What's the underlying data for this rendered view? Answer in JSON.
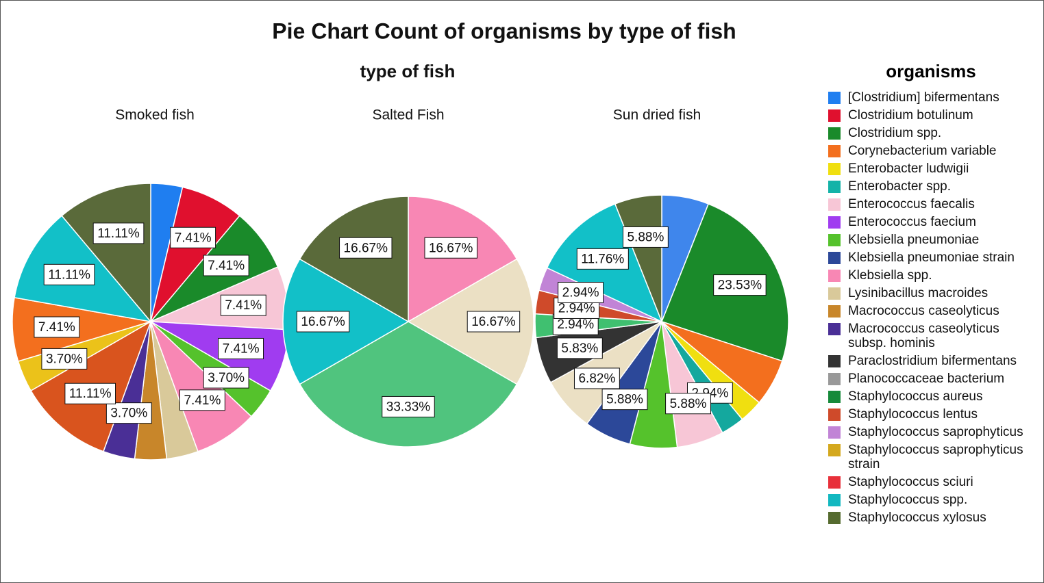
{
  "chart_data": {
    "type": "pie",
    "title": "Pie Chart Count of organisms by type of fish",
    "subtitle": "type of fish",
    "legend_title": "organisms",
    "legend": {
      "names": [
        "[Clostridium] bifermentans",
        "Clostridium botulinum",
        "Clostridium spp.",
        "Corynebacterium variable",
        "Enterobacter ludwigii",
        "Enterobacter spp.",
        "Enterococcus faecalis",
        "Enterococcus faecium",
        "Klebsiella pneumoniae",
        "Klebsiella pneumoniae strain",
        "Klebsiella spp.",
        "Lysinibacillus macroides",
        "Macrococcus caseolyticus",
        "Macrococcus caseolyticus subsp. hominis",
        "Paraclostridium bifermentans",
        "Planococcaceae bacterium",
        "Staphylococcus aureus",
        "Staphylococcus lentus",
        "Staphylococcus saprophyticus",
        "Staphylococcus saprophyticus strain",
        "Staphylococcus sciuri",
        "Staphylococcus spp.",
        "Staphylococcus xylosus"
      ],
      "colors": [
        "#1f7ef0",
        "#e0102e",
        "#1a8a2a",
        "#f36f1e",
        "#f0df10",
        "#14b3a8",
        "#f7c6d6",
        "#a03cf0",
        "#55c22c",
        "#2c4899",
        "#f887b4",
        "#d9c99a",
        "#c8862a",
        "#4a2f96",
        "#333333",
        "#999999",
        "#168a3a",
        "#cf4a2a",
        "#c184d6",
        "#d4a81e",
        "#e8303a",
        "#12b8c0",
        "#556b2f"
      ]
    },
    "pies": [
      {
        "name": "Smoked fish",
        "categories": [
          "[Clostridium] bifermentans",
          "Clostridium botulinum",
          "Clostridium spp.",
          "Enterococcus faecalis",
          "Enterococcus faecium",
          "Klebsiella pneumoniae",
          "Klebsiella spp.",
          "Lysinibacillus macroides",
          "Macrococcus caseolyticus",
          "Macrococcus caseolyticus subsp. hominis",
          "Staphylococcus lentus",
          "Staphylococcus saprophyticus strain",
          "Corynebacterium variable",
          "Staphylococcus spp.",
          "Staphylococcus xylosus"
        ],
        "colors": [
          "#1f7ef0",
          "#e0102e",
          "#1a8a2a",
          "#f7c6d6",
          "#a03cf0",
          "#55c22c",
          "#f887b4",
          "#d9c99a",
          "#c8862a",
          "#4a2f96",
          "#d9541e",
          "#ebc21a",
          "#f36f1e",
          "#12c0c8",
          "#5a6a3a"
        ],
        "values": [
          3.7,
          7.41,
          7.41,
          7.41,
          7.41,
          3.7,
          7.41,
          3.7,
          3.7,
          3.7,
          11.11,
          3.7,
          7.41,
          11.11,
          11.11
        ],
        "value_labels": [
          null,
          "7.41%",
          "7.41%",
          "7.41%",
          "7.41%",
          "3.70%",
          "7.41%",
          null,
          null,
          "3.70%",
          "11.11%",
          "3.70%",
          "7.41%",
          "11.11%",
          "11.11%"
        ]
      },
      {
        "name": "Salted Fish",
        "categories": [
          "Klebsiella spp.",
          "Lysinibacillus macroides",
          "Staphylococcus aureus",
          "Staphylococcus spp.",
          "Staphylococcus xylosus"
        ],
        "colors": [
          "#f887b4",
          "#ebe0c4",
          "#50c47e",
          "#12c0c8",
          "#5a6a3a"
        ],
        "values": [
          16.67,
          16.67,
          33.33,
          16.67,
          16.67
        ],
        "value_labels": [
          "16.67%",
          "16.67%",
          "33.33%",
          "16.67%",
          "16.67%"
        ]
      },
      {
        "name": "Sun dried fish",
        "categories": [
          "[Clostridium] bifermentans",
          "Clostridium spp.",
          "Corynebacterium variable",
          "Enterobacter ludwigii",
          "Enterobacter spp.",
          "Enterococcus faecalis",
          "Klebsiella pneumoniae",
          "Klebsiella pneumoniae strain",
          "Lysinibacillus macroides",
          "Paraclostridium bifermentans",
          "Staphylococcus aureus",
          "Staphylococcus lentus",
          "Staphylococcus saprophyticus",
          "Staphylococcus spp.",
          "Staphylococcus xylosus"
        ],
        "colors": [
          "#3f86ec",
          "#1a8a2a",
          "#f36f1e",
          "#f0df10",
          "#14a89e",
          "#f7c6d6",
          "#55c22c",
          "#2c4899",
          "#ebe0c4",
          "#333333",
          "#40c070",
          "#cf4a2a",
          "#c184d6",
          "#12c0c8",
          "#5a6a3a"
        ],
        "values": [
          5.88,
          23.53,
          5.88,
          2.94,
          2.94,
          5.88,
          5.88,
          5.88,
          6.82,
          5.83,
          2.94,
          2.94,
          2.94,
          11.76,
          5.88
        ],
        "value_labels": [
          null,
          "23.53%",
          null,
          null,
          "2.94%",
          "5.88%",
          null,
          "5.88%",
          "6.82%",
          "5.83%",
          "2.94%",
          "2.94%",
          "2.94%",
          "11.76%",
          "5.88%"
        ]
      }
    ]
  }
}
